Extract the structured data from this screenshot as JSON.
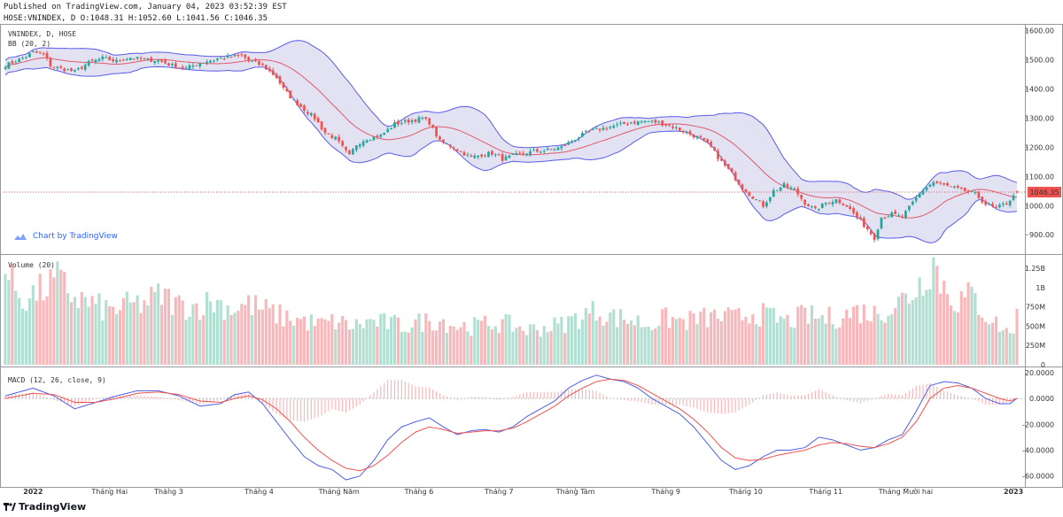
{
  "header": {
    "published": "Published on TradingView.com, January 04, 2023 03:52:39 EST",
    "ohlc_line": "HOSE:VNINDEX, D O:1048.31 H:1052.60 L:1041.56 C:1046.35"
  },
  "byline": "Chart by TradingView",
  "footer_brand": "TradingView",
  "colors": {
    "up": "#26a69a",
    "down": "#ef5350",
    "up_vol": "#b2dfd2",
    "down_vol": "#f8b8bb",
    "bb_fill": "#d8d8ef",
    "bb_band": "#5b5be8",
    "bb_basis": "#e05a6a",
    "macd_line": "#4c5fe6",
    "signal_line": "#ef5350",
    "last_price_bg": "#ef5350"
  },
  "chart_data": [
    {
      "type": "candlestick",
      "title": "VNINDEX, D, HOSE",
      "indicator_label": "BB (20, 2)",
      "last_price_label": "1046.35",
      "ylim": [
        840,
        1620
      ],
      "yticks": [
        "1600.00",
        "1500.00",
        "1400.00",
        "1300.00",
        "1200.00",
        "1100.00",
        "1000.00",
        "900.00"
      ],
      "keypoints_close": [
        [
          0,
          1480
        ],
        [
          4,
          1500
        ],
        [
          8,
          1525
        ],
        [
          11,
          1520
        ],
        [
          13,
          1480
        ],
        [
          16,
          1470
        ],
        [
          20,
          1460
        ],
        [
          24,
          1490
        ],
        [
          28,
          1505
        ],
        [
          32,
          1495
        ],
        [
          36,
          1508
        ],
        [
          40,
          1500
        ],
        [
          44,
          1498
        ],
        [
          48,
          1480
        ],
        [
          52,
          1470
        ],
        [
          56,
          1490
        ],
        [
          60,
          1500
        ],
        [
          64,
          1510
        ],
        [
          68,
          1515
        ],
        [
          70,
          1498
        ],
        [
          74,
          1480
        ],
        [
          78,
          1440
        ],
        [
          80,
          1400
        ],
        [
          83,
          1360
        ],
        [
          86,
          1330
        ],
        [
          89,
          1300
        ],
        [
          92,
          1250
        ],
        [
          95,
          1230
        ],
        [
          97,
          1200
        ],
        [
          99,
          1170
        ],
        [
          101,
          1210
        ],
        [
          104,
          1230
        ],
        [
          108,
          1240
        ],
        [
          112,
          1280
        ],
        [
          116,
          1290
        ],
        [
          120,
          1300
        ],
        [
          122,
          1285
        ],
        [
          125,
          1220
        ],
        [
          128,
          1205
        ],
        [
          131,
          1185
        ],
        [
          134,
          1165
        ],
        [
          137,
          1175
        ],
        [
          140,
          1180
        ],
        [
          143,
          1160
        ],
        [
          146,
          1170
        ],
        [
          149,
          1180
        ],
        [
          152,
          1185
        ],
        [
          156,
          1190
        ],
        [
          160,
          1200
        ],
        [
          164,
          1230
        ],
        [
          168,
          1255
        ],
        [
          172,
          1265
        ],
        [
          176,
          1275
        ],
        [
          180,
          1285
        ],
        [
          184,
          1290
        ],
        [
          188,
          1285
        ],
        [
          192,
          1270
        ],
        [
          196,
          1250
        ],
        [
          200,
          1230
        ],
        [
          203,
          1200
        ],
        [
          206,
          1150
        ],
        [
          209,
          1110
        ],
        [
          212,
          1060
        ],
        [
          215,
          1030
        ],
        [
          218,
          1000
        ],
        [
          221,
          1050
        ],
        [
          224,
          1070
        ],
        [
          227,
          1055
        ],
        [
          230,
          1010
        ],
        [
          233,
          985
        ],
        [
          236,
          1010
        ],
        [
          239,
          1020
        ],
        [
          242,
          1000
        ],
        [
          245,
          960
        ],
        [
          248,
          920
        ],
        [
          250,
          890
        ],
        [
          252,
          960
        ],
        [
          255,
          970
        ],
        [
          258,
          960
        ],
        [
          261,
          1010
        ],
        [
          264,
          1055
        ],
        [
          267,
          1080
        ],
        [
          270,
          1070
        ],
        [
          273,
          1060
        ],
        [
          276,
          1050
        ],
        [
          279,
          1040
        ],
        [
          282,
          1005
        ],
        [
          285,
          990
        ],
        [
          288,
          1010
        ],
        [
          290,
          1030
        ],
        [
          291,
          1046.35
        ]
      ]
    },
    {
      "type": "bar",
      "title": "Volume (20)",
      "ylim": [
        0,
        1400000000
      ],
      "yticks": [
        "1.25B",
        "1B",
        "750M",
        "500M",
        "250M",
        "0"
      ],
      "keypoints": [
        [
          0,
          1200
        ],
        [
          5,
          850
        ],
        [
          10,
          950
        ],
        [
          15,
          1100
        ],
        [
          20,
          880
        ],
        [
          25,
          780
        ],
        [
          30,
          700
        ],
        [
          35,
          760
        ],
        [
          40,
          800
        ],
        [
          45,
          900
        ],
        [
          50,
          770
        ],
        [
          55,
          760
        ],
        [
          60,
          820
        ],
        [
          65,
          730
        ],
        [
          70,
          780
        ],
        [
          75,
          700
        ],
        [
          80,
          620
        ],
        [
          85,
          580
        ],
        [
          90,
          520
        ],
        [
          95,
          560
        ],
        [
          100,
          500
        ],
        [
          105,
          560
        ],
        [
          110,
          540
        ],
        [
          115,
          500
        ],
        [
          120,
          560
        ],
        [
          125,
          580
        ],
        [
          130,
          500
        ],
        [
          135,
          500
        ],
        [
          140,
          540
        ],
        [
          145,
          520
        ],
        [
          150,
          450
        ],
        [
          155,
          480
        ],
        [
          160,
          520
        ],
        [
          165,
          620
        ],
        [
          170,
          700
        ],
        [
          175,
          620
        ],
        [
          180,
          580
        ],
        [
          185,
          520
        ],
        [
          190,
          600
        ],
        [
          195,
          560
        ],
        [
          200,
          600
        ],
        [
          205,
          620
        ],
        [
          210,
          600
        ],
        [
          215,
          680
        ],
        [
          220,
          620
        ],
        [
          225,
          560
        ],
        [
          230,
          640
        ],
        [
          235,
          600
        ],
        [
          240,
          620
        ],
        [
          245,
          700
        ],
        [
          250,
          660
        ],
        [
          255,
          750
        ],
        [
          260,
          900
        ],
        [
          263,
          1050
        ],
        [
          265,
          1200
        ],
        [
          267,
          1350
        ],
        [
          269,
          1100
        ],
        [
          271,
          950
        ],
        [
          274,
          820
        ],
        [
          278,
          900
        ],
        [
          282,
          650
        ],
        [
          286,
          500
        ],
        [
          289,
          400
        ],
        [
          291,
          620
        ]
      ]
    },
    {
      "type": "line",
      "title": "MACD (12, 26, close, 9)",
      "ylim": [
        -65,
        22
      ],
      "yticks": [
        "20.0000",
        "0.0000",
        "-20.0000",
        "-40.0000",
        "-60.0000"
      ],
      "series": [
        {
          "name": "MACD",
          "keypoints": [
            [
              0,
              2
            ],
            [
              8,
              8
            ],
            [
              14,
              2
            ],
            [
              20,
              -8
            ],
            [
              26,
              -3
            ],
            [
              32,
              2
            ],
            [
              38,
              6
            ],
            [
              44,
              6
            ],
            [
              50,
              2
            ],
            [
              56,
              -6
            ],
            [
              62,
              -4
            ],
            [
              66,
              3
            ],
            [
              70,
              5
            ],
            [
              74,
              -4
            ],
            [
              78,
              -18
            ],
            [
              82,
              -32
            ],
            [
              86,
              -45
            ],
            [
              90,
              -52
            ],
            [
              94,
              -55
            ],
            [
              98,
              -63
            ],
            [
              102,
              -60
            ],
            [
              106,
              -48
            ],
            [
              110,
              -32
            ],
            [
              114,
              -22
            ],
            [
              118,
              -18
            ],
            [
              122,
              -15
            ],
            [
              126,
              -22
            ],
            [
              130,
              -28
            ],
            [
              134,
              -25
            ],
            [
              138,
              -24
            ],
            [
              142,
              -26
            ],
            [
              146,
              -22
            ],
            [
              150,
              -14
            ],
            [
              154,
              -8
            ],
            [
              158,
              -2
            ],
            [
              162,
              8
            ],
            [
              166,
              14
            ],
            [
              170,
              18
            ],
            [
              174,
              15
            ],
            [
              178,
              13
            ],
            [
              182,
              8
            ],
            [
              186,
              0
            ],
            [
              190,
              -6
            ],
            [
              194,
              -12
            ],
            [
              198,
              -22
            ],
            [
              202,
              -35
            ],
            [
              206,
              -48
            ],
            [
              210,
              -55
            ],
            [
              214,
              -52
            ],
            [
              218,
              -45
            ],
            [
              222,
              -40
            ],
            [
              226,
              -40
            ],
            [
              230,
              -38
            ],
            [
              234,
              -30
            ],
            [
              238,
              -32
            ],
            [
              242,
              -36
            ],
            [
              246,
              -40
            ],
            [
              250,
              -38
            ],
            [
              254,
              -32
            ],
            [
              258,
              -28
            ],
            [
              262,
              -10
            ],
            [
              266,
              10
            ],
            [
              270,
              13
            ],
            [
              274,
              12
            ],
            [
              278,
              8
            ],
            [
              282,
              0
            ],
            [
              286,
              -4
            ],
            [
              289,
              -4
            ],
            [
              291,
              0
            ]
          ]
        },
        {
          "name": "Signal",
          "keypoints": [
            [
              0,
              0
            ],
            [
              8,
              4
            ],
            [
              14,
              3
            ],
            [
              20,
              -3
            ],
            [
              26,
              -3
            ],
            [
              32,
              0
            ],
            [
              38,
              4
            ],
            [
              44,
              5
            ],
            [
              50,
              3
            ],
            [
              56,
              -2
            ],
            [
              62,
              -3
            ],
            [
              66,
              0
            ],
            [
              70,
              2
            ],
            [
              74,
              -1
            ],
            [
              78,
              -8
            ],
            [
              82,
              -18
            ],
            [
              86,
              -30
            ],
            [
              90,
              -40
            ],
            [
              94,
              -48
            ],
            [
              98,
              -54
            ],
            [
              102,
              -56
            ],
            [
              106,
              -52
            ],
            [
              110,
              -44
            ],
            [
              114,
              -34
            ],
            [
              118,
              -26
            ],
            [
              122,
              -22
            ],
            [
              126,
              -24
            ],
            [
              130,
              -27
            ],
            [
              134,
              -26
            ],
            [
              138,
              -25
            ],
            [
              142,
              -25
            ],
            [
              146,
              -23
            ],
            [
              150,
              -18
            ],
            [
              154,
              -12
            ],
            [
              158,
              -6
            ],
            [
              162,
              2
            ],
            [
              166,
              8
            ],
            [
              170,
              13
            ],
            [
              174,
              15
            ],
            [
              178,
              14
            ],
            [
              182,
              10
            ],
            [
              186,
              4
            ],
            [
              190,
              -2
            ],
            [
              194,
              -8
            ],
            [
              198,
              -16
            ],
            [
              202,
              -26
            ],
            [
              206,
              -38
            ],
            [
              210,
              -46
            ],
            [
              214,
              -48
            ],
            [
              218,
              -47
            ],
            [
              222,
              -44
            ],
            [
              226,
              -42
            ],
            [
              230,
              -40
            ],
            [
              234,
              -36
            ],
            [
              238,
              -34
            ],
            [
              242,
              -35
            ],
            [
              246,
              -37
            ],
            [
              250,
              -38
            ],
            [
              254,
              -35
            ],
            [
              258,
              -30
            ],
            [
              262,
              -18
            ],
            [
              266,
              0
            ],
            [
              270,
              8
            ],
            [
              274,
              10
            ],
            [
              278,
              8
            ],
            [
              282,
              4
            ],
            [
              286,
              0
            ],
            [
              289,
              -2
            ],
            [
              291,
              0
            ]
          ]
        }
      ]
    }
  ],
  "xaxis": {
    "labels": [
      "2022",
      "Tháng Hai",
      "Tháng 3",
      "Tháng 4",
      "Tháng Năm",
      "Tháng 6",
      "Tháng 7",
      "Tháng Tám",
      "Tháng 9",
      "Tháng 10",
      "Tháng 11",
      "Tháng Mười hai",
      "2023"
    ],
    "label_bar_index": [
      8,
      30,
      47,
      73,
      96,
      119,
      142,
      164,
      190,
      213,
      236,
      259,
      290
    ],
    "bold_labels": [
      "2022",
      "2023"
    ]
  }
}
